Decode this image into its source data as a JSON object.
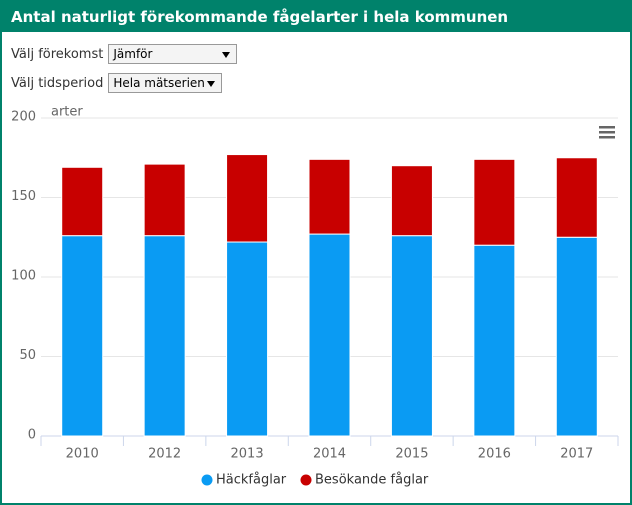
{
  "header": {
    "title": "Antal naturligt förekommande fågelarter i hela kommunen"
  },
  "controls": [
    {
      "label": "Välj förekomst",
      "value": "Jämför"
    },
    {
      "label": "Välj tidsperiod",
      "value": "Hela mätserien"
    }
  ],
  "chart_data": {
    "type": "stacked_bar",
    "y_label": "arter",
    "categories": [
      "2010",
      "2012",
      "2013",
      "2014",
      "2015",
      "2016",
      "2017"
    ],
    "series": [
      {
        "name": "Häckfåglar",
        "color": "#0a9bf3",
        "values": [
          126,
          126,
          122,
          127,
          126,
          120,
          125
        ]
      },
      {
        "name": "Besökande fåglar",
        "color": "#c80000",
        "values": [
          43,
          45,
          55,
          47,
          44,
          54,
          50
        ]
      }
    ],
    "ylim": [
      0,
      200
    ],
    "yticks": [
      0,
      50,
      100,
      150,
      200
    ],
    "grid": true
  }
}
